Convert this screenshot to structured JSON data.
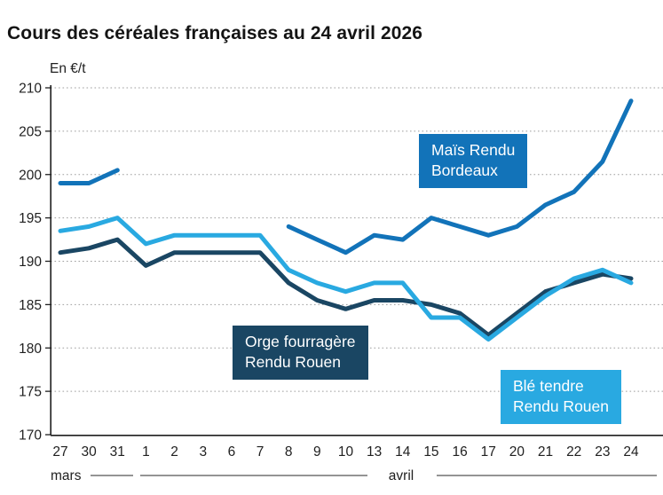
{
  "title": "Cours des céréales françaises au 24 avril 2026",
  "chart_data": {
    "type": "line",
    "title": "Cours des céréales françaises au 24 avril 2026",
    "unit_label": "En €/t",
    "ylim": [
      170,
      210
    ],
    "yticks": [
      170,
      175,
      180,
      185,
      190,
      195,
      200,
      205,
      210
    ],
    "grid": "dotted horizontal",
    "x_categories": [
      "27",
      "30",
      "31",
      "1",
      "2",
      "3",
      "6",
      "7",
      "8",
      "9",
      "10",
      "13",
      "14",
      "15",
      "16",
      "17",
      "20",
      "21",
      "22",
      "23",
      "24"
    ],
    "month_bands": [
      {
        "label": "mars",
        "span_indices": [
          0,
          2
        ]
      },
      {
        "label": "avril",
        "span_indices": [
          3,
          20
        ]
      }
    ],
    "legend_position": "inline boxed annotations",
    "series": [
      {
        "name": "Maïs Rendu Bordeaux",
        "label_lines": [
          "Maïs Rendu",
          "Bordeaux"
        ],
        "color": "#1273b9",
        "values": [
          199,
          199,
          200.5,
          null,
          null,
          null,
          null,
          null,
          194,
          192.5,
          191,
          193,
          192.5,
          195,
          194,
          193,
          194,
          196.5,
          198,
          201.5,
          208.5
        ]
      },
      {
        "name": "Orge fourragère Rendu Rouen",
        "label_lines": [
          "Orge fourragère",
          "Rendu Rouen"
        ],
        "color": "#1a4663",
        "values": [
          191,
          191.5,
          192.5,
          189.5,
          191,
          191,
          191,
          191,
          187.5,
          185.5,
          184.5,
          185.5,
          185.5,
          185,
          184,
          181.5,
          184,
          186.5,
          187.5,
          188.5,
          188
        ]
      },
      {
        "name": "Blé tendre Rendu Rouen",
        "label_lines": [
          "Blé tendre",
          "Rendu Rouen"
        ],
        "color": "#29a9e1",
        "values": [
          193.5,
          194,
          195,
          192,
          193,
          193,
          193,
          193,
          189,
          187.5,
          186.5,
          187.5,
          187.5,
          183.5,
          183.5,
          181,
          183.5,
          186,
          188,
          189,
          187.5
        ]
      }
    ],
    "colors": {
      "mais": "#1273b9",
      "orge": "#1a4663",
      "ble": "#29a9e1",
      "gridline": "#9e9e9e",
      "axis": "#1f1f1f"
    }
  }
}
